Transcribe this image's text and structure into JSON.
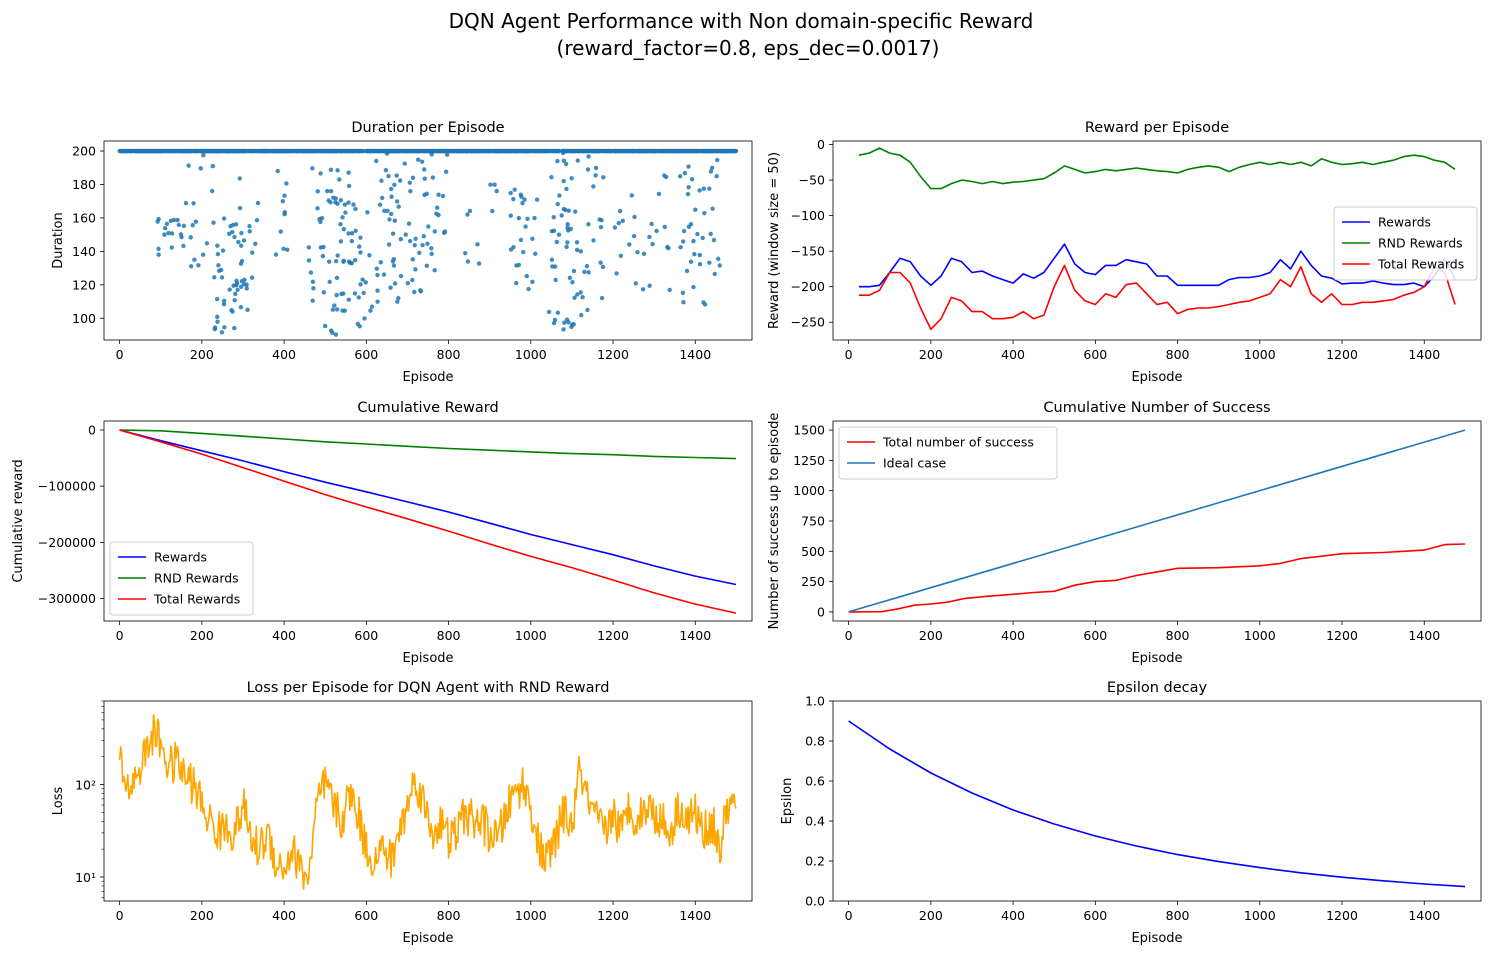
{
  "figure": {
    "title_line1": "DQN Agent Performance with Non domain-specific Reward",
    "title_line2": "(reward_factor=0.8, eps_dec=0.0017)"
  },
  "chart_data": [
    {
      "id": "duration",
      "type": "scatter",
      "title": "Duration per Episode",
      "xlabel": "Episode",
      "ylabel": "Duration",
      "xlim": [
        -38,
        1538
      ],
      "ylim": [
        87,
        206
      ],
      "xticks": [
        0,
        200,
        400,
        600,
        800,
        1000,
        1200,
        1400
      ],
      "yticks": [
        100,
        120,
        140,
        160,
        180,
        200
      ],
      "legend": "none",
      "series": [
        {
          "color": "#1f77b4",
          "x_range": [
            0,
            1499
          ],
          "ceiling": 200,
          "description_points": "most episodes at 200; clusters of shorter episodes",
          "clusters": [
            [
              90,
              160,
              138,
              160,
              18
            ],
            [
              160,
              230,
              120,
              200,
              16
            ],
            [
              230,
              300,
              88,
              160,
              40
            ],
            [
              280,
              340,
              100,
              200,
              18
            ],
            [
              380,
              420,
              110,
              200,
              10
            ],
            [
              460,
              560,
              88,
              190,
              60
            ],
            [
              560,
              620,
              94,
              170,
              24
            ],
            [
              620,
              800,
              108,
              200,
              80
            ],
            [
              840,
              880,
              130,
              170,
              6
            ],
            [
              900,
              920,
              150,
              180,
              4
            ],
            [
              950,
              1020,
              115,
              180,
              25
            ],
            [
              1040,
              1110,
              88,
              200,
              45
            ],
            [
              1110,
              1180,
              100,
              200,
              26
            ],
            [
              1200,
              1260,
              120,
              180,
              12
            ],
            [
              1270,
              1340,
              110,
              190,
              14
            ],
            [
              1360,
              1460,
              108,
              195,
              40
            ]
          ]
        }
      ]
    },
    {
      "id": "reward",
      "type": "line",
      "title": "Reward per Episode",
      "xlabel": "Episode",
      "ylabel": "Reward (window size = 50)",
      "xlim": [
        -38,
        1538
      ],
      "ylim": [
        -275,
        5
      ],
      "xticks": [
        0,
        200,
        400,
        600,
        800,
        1000,
        1200,
        1400
      ],
      "yticks": [
        0,
        -50,
        -100,
        -150,
        -200,
        -250
      ],
      "legend": "center-right",
      "series": [
        {
          "name": "Rewards",
          "color": "#0000ff",
          "x": [
            25,
            50,
            75,
            100,
            125,
            150,
            175,
            200,
            225,
            250,
            275,
            300,
            325,
            350,
            375,
            400,
            425,
            450,
            475,
            500,
            525,
            550,
            575,
            600,
            625,
            650,
            675,
            700,
            725,
            750,
            775,
            800,
            825,
            850,
            875,
            900,
            925,
            950,
            975,
            1000,
            1025,
            1050,
            1075,
            1100,
            1125,
            1150,
            1175,
            1200,
            1225,
            1250,
            1275,
            1300,
            1325,
            1350,
            1375,
            1400,
            1425,
            1450,
            1475
          ],
          "y": [
            -200,
            -200,
            -198,
            -180,
            -160,
            -165,
            -185,
            -198,
            -185,
            -160,
            -165,
            -180,
            -178,
            -185,
            -190,
            -195,
            -182,
            -188,
            -180,
            -160,
            -140,
            -168,
            -180,
            -183,
            -170,
            -170,
            -162,
            -165,
            -168,
            -185,
            -185,
            -198,
            -198,
            -198,
            -198,
            -198,
            -190,
            -187,
            -187,
            -185,
            -180,
            -162,
            -175,
            -150,
            -170,
            -185,
            -188,
            -196,
            -195,
            -195,
            -192,
            -195,
            -197,
            -197,
            -195,
            -200,
            -185,
            -160,
            -190
          ]
        },
        {
          "name": "RND Rewards",
          "color": "#008000",
          "x": [
            25,
            50,
            75,
            100,
            125,
            150,
            175,
            200,
            225,
            250,
            275,
            300,
            325,
            350,
            375,
            400,
            425,
            450,
            475,
            500,
            525,
            550,
            575,
            600,
            625,
            650,
            675,
            700,
            725,
            750,
            775,
            800,
            825,
            850,
            875,
            900,
            925,
            950,
            975,
            1000,
            1025,
            1050,
            1075,
            1100,
            1125,
            1150,
            1175,
            1200,
            1225,
            1250,
            1275,
            1300,
            1325,
            1350,
            1375,
            1400,
            1425,
            1450,
            1475
          ],
          "y": [
            -15,
            -12,
            -5,
            -12,
            -15,
            -25,
            -45,
            -62,
            -62,
            -55,
            -50,
            -52,
            -55,
            -52,
            -55,
            -53,
            -52,
            -50,
            -48,
            -40,
            -30,
            -35,
            -40,
            -38,
            -35,
            -37,
            -35,
            -33,
            -35,
            -37,
            -38,
            -40,
            -35,
            -32,
            -30,
            -32,
            -38,
            -32,
            -28,
            -25,
            -28,
            -25,
            -28,
            -25,
            -30,
            -20,
            -25,
            -28,
            -27,
            -25,
            -28,
            -25,
            -22,
            -17,
            -15,
            -17,
            -22,
            -25,
            -35
          ]
        },
        {
          "name": "Total Rewards",
          "color": "#ff0000",
          "x": [
            25,
            50,
            75,
            100,
            125,
            150,
            175,
            200,
            225,
            250,
            275,
            300,
            325,
            350,
            375,
            400,
            425,
            450,
            475,
            500,
            525,
            550,
            575,
            600,
            625,
            650,
            675,
            700,
            725,
            750,
            775,
            800,
            825,
            850,
            875,
            900,
            925,
            950,
            975,
            1000,
            1025,
            1050,
            1075,
            1100,
            1125,
            1150,
            1175,
            1200,
            1225,
            1250,
            1275,
            1300,
            1325,
            1350,
            1375,
            1400,
            1425,
            1450,
            1475
          ],
          "y": [
            -212,
            -212,
            -205,
            -180,
            -180,
            -195,
            -230,
            -260,
            -245,
            -215,
            -220,
            -235,
            -235,
            -245,
            -245,
            -243,
            -235,
            -245,
            -240,
            -200,
            -170,
            -205,
            -220,
            -225,
            -210,
            -215,
            -197,
            -195,
            -210,
            -225,
            -222,
            -238,
            -232,
            -230,
            -230,
            -228,
            -225,
            -222,
            -220,
            -215,
            -210,
            -190,
            -200,
            -172,
            -210,
            -222,
            -210,
            -225,
            -225,
            -222,
            -222,
            -220,
            -218,
            -212,
            -208,
            -200,
            -172,
            -180,
            -225
          ]
        }
      ]
    },
    {
      "id": "cumreward",
      "type": "line",
      "title": "Cumulative Reward",
      "xlabel": "Episode",
      "ylabel": "Cumulative reward",
      "xlim": [
        -38,
        1538
      ],
      "ylim": [
        -340000,
        16000
      ],
      "xticks": [
        0,
        200,
        400,
        600,
        800,
        1000,
        1200,
        1400
      ],
      "yticks": [
        0,
        -100000,
        -200000,
        -300000
      ],
      "legend": "lower-left",
      "series": [
        {
          "name": "Rewards",
          "color": "#0000ff",
          "x": [
            0,
            100,
            200,
            300,
            400,
            500,
            600,
            700,
            800,
            900,
            1000,
            1100,
            1200,
            1300,
            1400,
            1499
          ],
          "y": [
            0,
            -19000,
            -37000,
            -55000,
            -74000,
            -93000,
            -110000,
            -128000,
            -146000,
            -166000,
            -186000,
            -204000,
            -222000,
            -242000,
            -260000,
            -275000
          ]
        },
        {
          "name": "RND Rewards",
          "color": "#008000",
          "x": [
            0,
            100,
            200,
            300,
            400,
            500,
            600,
            700,
            800,
            900,
            1000,
            1100,
            1200,
            1300,
            1400,
            1499
          ],
          "y": [
            0,
            -1500,
            -6000,
            -11000,
            -16000,
            -21000,
            -25000,
            -29000,
            -33000,
            -36000,
            -39000,
            -42000,
            -44000,
            -47000,
            -49000,
            -51000
          ]
        },
        {
          "name": "Total Rewards",
          "color": "#ff0000",
          "x": [
            0,
            100,
            200,
            300,
            400,
            500,
            600,
            700,
            800,
            900,
            1000,
            1100,
            1200,
            1300,
            1400,
            1499
          ],
          "y": [
            0,
            -21000,
            -43000,
            -67000,
            -91000,
            -115000,
            -137000,
            -158000,
            -180000,
            -203000,
            -225000,
            -245000,
            -267000,
            -290000,
            -310000,
            -326000
          ]
        }
      ]
    },
    {
      "id": "success",
      "type": "line",
      "title": "Cumulative Number of Success",
      "xlabel": "Episode",
      "ylabel": "Number of success up to episode",
      "xlim": [
        -38,
        1538
      ],
      "ylim": [
        -75,
        1575
      ],
      "xticks": [
        0,
        200,
        400,
        600,
        800,
        1000,
        1200,
        1400
      ],
      "yticks": [
        0,
        250,
        500,
        750,
        1000,
        1250,
        1500
      ],
      "legend": "top-left",
      "series": [
        {
          "name": "Total number of success",
          "color": "#ff0000",
          "x": [
            0,
            80,
            120,
            160,
            200,
            240,
            280,
            340,
            400,
            450,
            500,
            550,
            600,
            650,
            700,
            750,
            800,
            900,
            1000,
            1050,
            1100,
            1150,
            1200,
            1300,
            1350,
            1400,
            1450,
            1499
          ],
          "y": [
            0,
            2,
            25,
            55,
            65,
            80,
            110,
            130,
            145,
            160,
            170,
            220,
            250,
            260,
            300,
            330,
            360,
            365,
            380,
            400,
            440,
            460,
            480,
            490,
            500,
            510,
            555,
            560
          ]
        },
        {
          "name": "Ideal case",
          "color": "#1f77b4",
          "x": [
            0,
            1499
          ],
          "y": [
            0,
            1500
          ]
        }
      ]
    },
    {
      "id": "loss",
      "type": "line",
      "title": "Loss per Episode for DQN Agent with RND Reward",
      "xlabel": "Episode",
      "ylabel": "Loss",
      "xlim": [
        -38,
        1538
      ],
      "ylim": [
        5.5,
        800
      ],
      "yscale": "log",
      "xticks": [
        0,
        200,
        400,
        600,
        800,
        1000,
        1200,
        1400
      ],
      "yticks_major": [
        10,
        100
      ],
      "yticks_major_labels": [
        "10¹",
        "10²"
      ],
      "legend": "none",
      "series": [
        {
          "color": "#ffa500",
          "x": [
            0,
            20,
            40,
            60,
            80,
            100,
            120,
            140,
            160,
            180,
            200,
            220,
            240,
            260,
            280,
            300,
            320,
            340,
            360,
            380,
            400,
            420,
            440,
            460,
            480,
            500,
            520,
            540,
            560,
            580,
            600,
            620,
            640,
            660,
            680,
            700,
            720,
            740,
            760,
            780,
            800,
            820,
            840,
            860,
            880,
            900,
            920,
            940,
            960,
            980,
            1000,
            1020,
            1040,
            1060,
            1080,
            1100,
            1120,
            1140,
            1160,
            1180,
            1200,
            1220,
            1240,
            1260,
            1280,
            1300,
            1320,
            1340,
            1360,
            1380,
            1400,
            1420,
            1440,
            1460,
            1480,
            1499
          ],
          "y": [
            200,
            90,
            120,
            200,
            350,
            300,
            150,
            180,
            120,
            100,
            60,
            40,
            30,
            35,
            30,
            60,
            25,
            20,
            30,
            15,
            12,
            20,
            12,
            10,
            60,
            100,
            60,
            40,
            80,
            50,
            20,
            15,
            20,
            15,
            30,
            60,
            120,
            60,
            30,
            40,
            25,
            30,
            50,
            40,
            40,
            30,
            25,
            50,
            80,
            100,
            60,
            20,
            15,
            25,
            50,
            35,
            150,
            60,
            40,
            30,
            50,
            30,
            60,
            40,
            60,
            50,
            40,
            30,
            60,
            40,
            50,
            30,
            40,
            20,
            60,
            55
          ]
        }
      ]
    },
    {
      "id": "epsilon",
      "type": "line",
      "title": "Epsilon decay",
      "xlabel": "Episode",
      "ylabel": "Epsilon",
      "xlim": [
        -38,
        1538
      ],
      "ylim": [
        0.0,
        1.0
      ],
      "xticks": [
        0,
        200,
        400,
        600,
        800,
        1000,
        1200,
        1400
      ],
      "yticks": [
        0.0,
        0.2,
        0.4,
        0.6,
        0.8,
        1.0
      ],
      "legend": "none",
      "series": [
        {
          "color": "#0000ff",
          "x": [
            0,
            100,
            200,
            300,
            400,
            500,
            600,
            700,
            800,
            900,
            1000,
            1100,
            1200,
            1300,
            1400,
            1499
          ],
          "y": [
            0.9,
            0.76,
            0.64,
            0.54,
            0.455,
            0.385,
            0.325,
            0.275,
            0.232,
            0.197,
            0.167,
            0.141,
            0.119,
            0.101,
            0.085,
            0.072
          ]
        }
      ]
    }
  ]
}
